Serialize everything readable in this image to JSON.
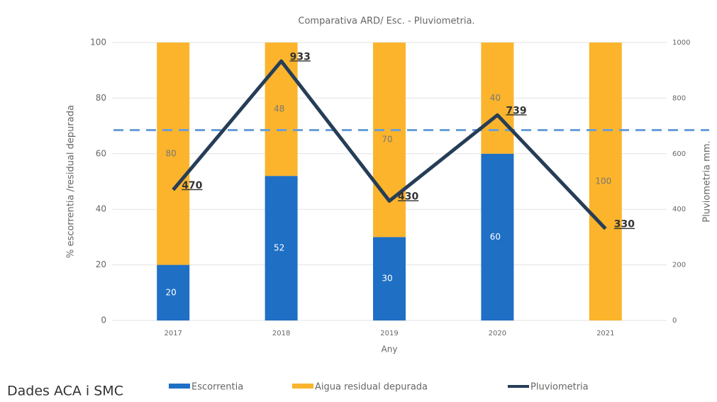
{
  "chart_data": {
    "type": "bar",
    "stacked": true,
    "title": "Comparativa ARD/ Esc. -  Pluviometria.",
    "x_label": "Any",
    "y_label": "% escorrentia /residual depurada",
    "y2_label": "Pluviometria mm.",
    "source": "Dades ACA i SMC",
    "categories": [
      "2017",
      "2018",
      "2019",
      "2020",
      "2021"
    ],
    "series": [
      {
        "name": "Escorrentia",
        "type": "bar",
        "color": "#1f6fc5",
        "values": [
          20,
          52,
          30,
          60,
          null
        ]
      },
      {
        "name": "Aigua residual depurada",
        "type": "bar",
        "color": "#fbb42c",
        "values": [
          80,
          48,
          70,
          40,
          100
        ]
      },
      {
        "name": "Pluviometria",
        "type": "line",
        "axis": "y2",
        "color": "#263d57",
        "values": [
          470,
          933,
          430,
          739,
          330
        ]
      }
    ],
    "reference_line": {
      "value": 68.5,
      "color": "#6a9fd8",
      "dashed": true
    },
    "ylim": [
      0,
      100
    ],
    "yticks": [
      0,
      20,
      40,
      60,
      80,
      100
    ],
    "y2lim": [
      0,
      1000
    ],
    "y2ticks": [
      0,
      200,
      400,
      600,
      800,
      1000
    ],
    "grid": true
  }
}
